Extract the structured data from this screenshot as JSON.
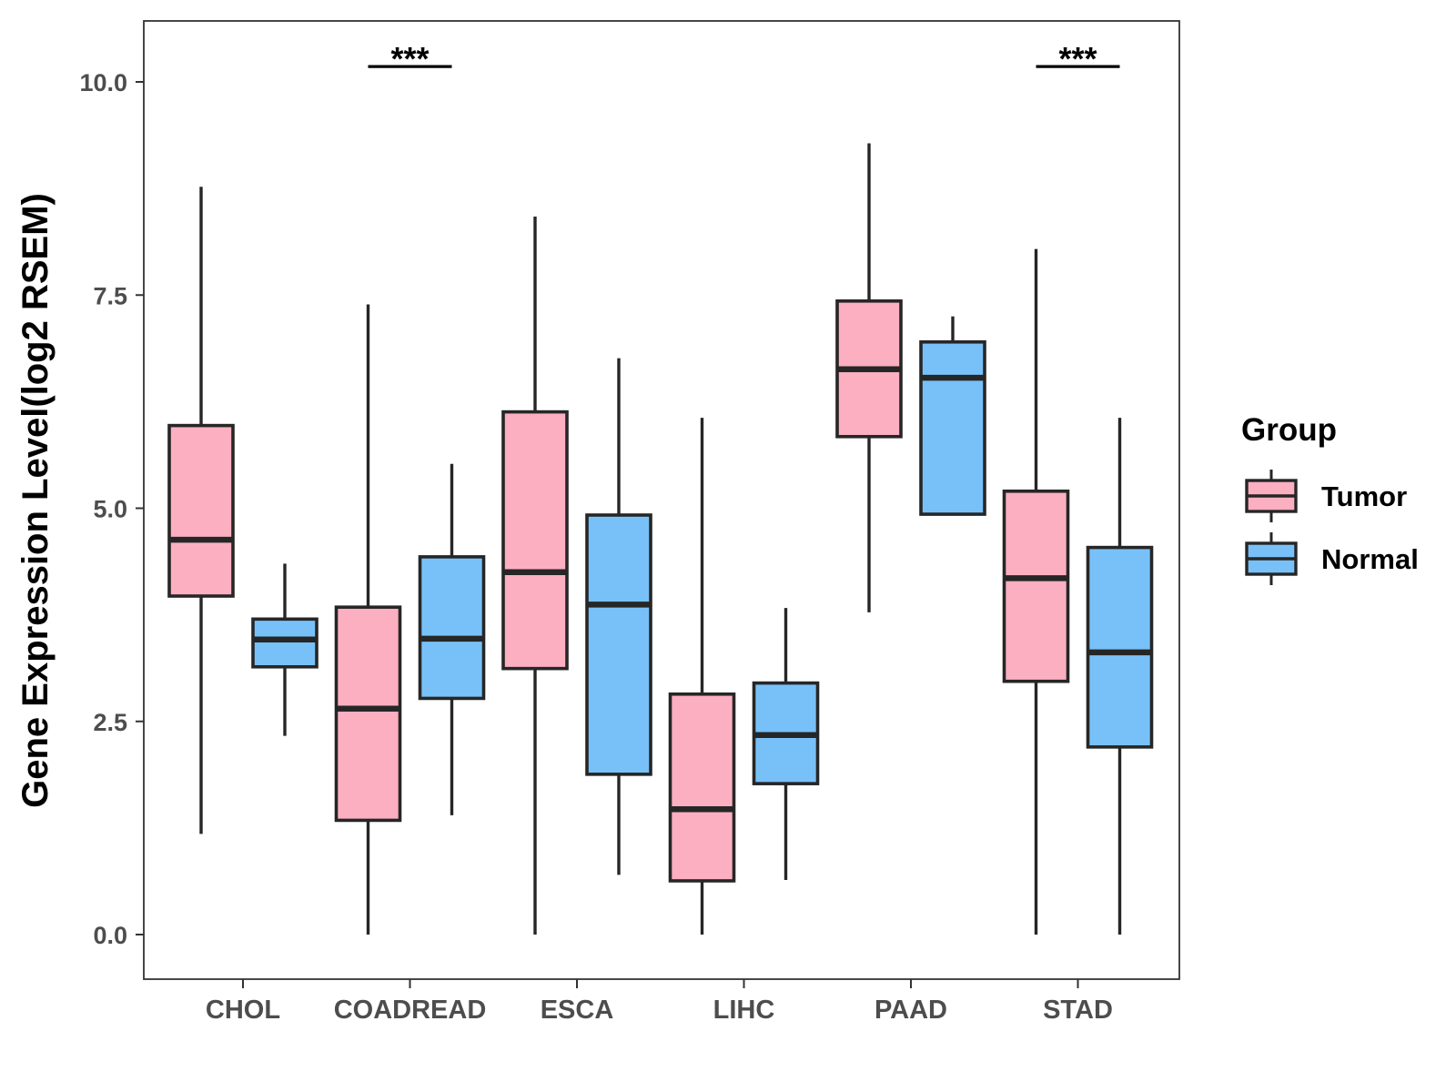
{
  "chart_data": {
    "type": "boxplot",
    "title": "",
    "xlabel": "",
    "ylabel": "Gene Expression Level(log2 RSEM)",
    "ylim": [
      -0.5,
      10.7
    ],
    "yticks": [
      0.0,
      2.5,
      5.0,
      7.5,
      10.0
    ],
    "ytick_labels": [
      "0.0",
      "2.5",
      "5.0",
      "7.5",
      "10.0"
    ],
    "categories": [
      "CHOL",
      "COADREAD",
      "ESCA",
      "LIHC",
      "PAAD",
      "STAD"
    ],
    "legend": {
      "title": "Group",
      "placement": "right"
    },
    "series": [
      {
        "name": "Tumor",
        "color": "#FBAFC1",
        "boxes": [
          {
            "whisker_low": 1.18,
            "q1": 3.97,
            "median": 4.63,
            "q3": 5.97,
            "whisker_high": 8.77
          },
          {
            "whisker_low": 0.0,
            "q1": 1.34,
            "median": 2.65,
            "q3": 3.84,
            "whisker_high": 7.39
          },
          {
            "whisker_low": 0.0,
            "q1": 3.12,
            "median": 4.25,
            "q3": 6.13,
            "whisker_high": 8.42
          },
          {
            "whisker_low": 0.0,
            "q1": 0.63,
            "median": 1.47,
            "q3": 2.82,
            "whisker_high": 6.06
          },
          {
            "whisker_low": 3.78,
            "q1": 5.84,
            "median": 6.63,
            "q3": 7.43,
            "whisker_high": 9.28
          },
          {
            "whisker_low": 0.0,
            "q1": 2.97,
            "median": 4.18,
            "q3": 5.2,
            "whisker_high": 8.04
          }
        ]
      },
      {
        "name": "Normal",
        "color": "#78C1F8",
        "boxes": [
          {
            "whisker_low": 2.33,
            "q1": 3.14,
            "median": 3.46,
            "q3": 3.7,
            "whisker_high": 4.35
          },
          {
            "whisker_low": 1.4,
            "q1": 2.77,
            "median": 3.47,
            "q3": 4.43,
            "whisker_high": 5.52
          },
          {
            "whisker_low": 0.7,
            "q1": 1.88,
            "median": 3.87,
            "q3": 4.92,
            "whisker_high": 6.76
          },
          {
            "whisker_low": 0.64,
            "q1": 1.77,
            "median": 2.34,
            "q3": 2.95,
            "whisker_high": 3.83
          },
          {
            "whisker_low": 4.93,
            "q1": 4.93,
            "median": 6.53,
            "q3": 6.95,
            "whisker_high": 7.25
          },
          {
            "whisker_low": 0.0,
            "q1": 2.2,
            "median": 3.31,
            "q3": 4.54,
            "whisker_high": 6.06
          }
        ]
      }
    ],
    "annotations": [
      {
        "category": "COADREAD",
        "label": "***",
        "y": 10.18
      },
      {
        "category": "STAD",
        "label": "***",
        "y": 10.18
      }
    ],
    "grid": false
  }
}
